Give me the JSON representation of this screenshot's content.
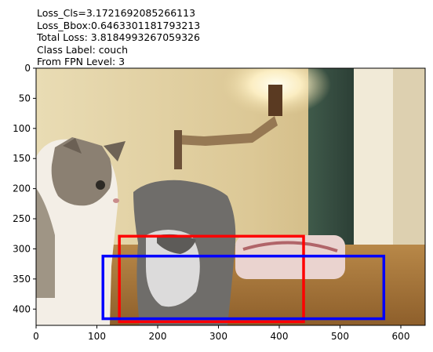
{
  "title_lines": [
    "Loss_Cls=3.1721692085266113",
    "Loss_Bbox:0.6463301181793213",
    "Total Loss: 3.8184993267059326",
    "Class Label: couch",
    "From FPN Level: 3"
  ],
  "image_description": "photo of two kittens indoors near a couch with a blurred background",
  "axes": {
    "x_ticks": [
      0,
      100,
      200,
      300,
      400,
      500,
      600
    ],
    "y_ticks": [
      0,
      50,
      100,
      150,
      200,
      250,
      300,
      350,
      400
    ],
    "xlim": [
      0,
      640
    ],
    "ylim": [
      427,
      0
    ]
  },
  "boxes": [
    {
      "name": "box-red",
      "color": "#ff0000",
      "x1": 137,
      "y1": 279,
      "x2": 440,
      "y2": 421
    },
    {
      "name": "box-blue",
      "color": "#0000ff",
      "x1": 110,
      "y1": 312,
      "x2": 572,
      "y2": 416
    }
  ]
}
